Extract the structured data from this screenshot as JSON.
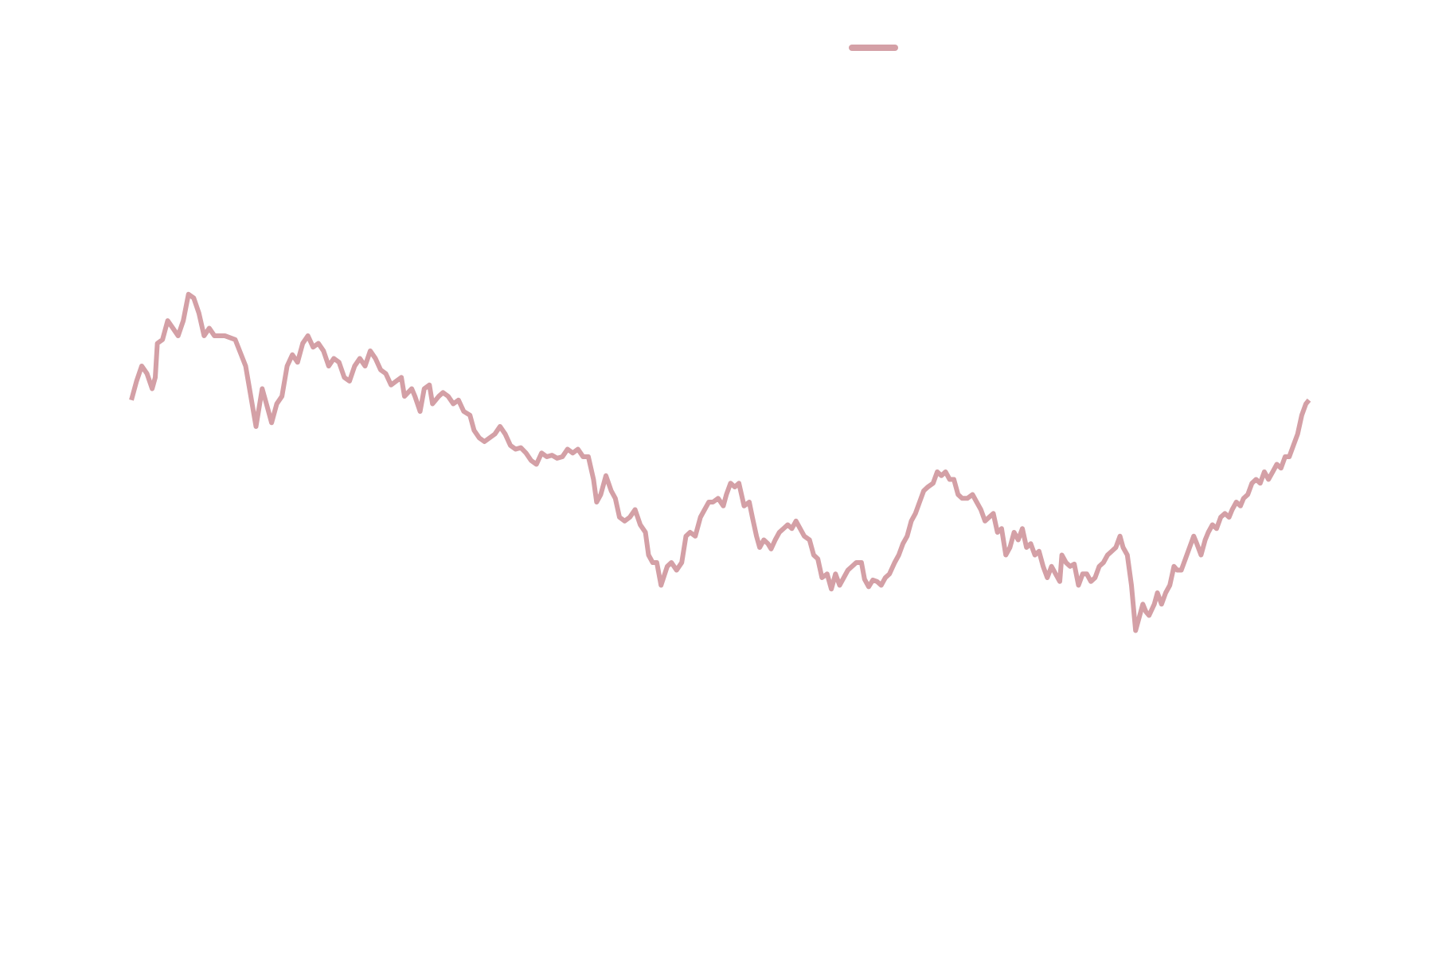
{
  "chart_data": {
    "type": "line",
    "title": "",
    "xlabel": "",
    "ylabel": "",
    "axes_visible": false,
    "grid": false,
    "legend": {
      "placement": "top-center",
      "entries": [
        {
          "label": "",
          "color": "#d4a0a6"
        }
      ]
    },
    "ylim": [
      0,
      100
    ],
    "series": [
      {
        "color": "#d4a0a6",
        "points": [
          [
            0,
            55.5
          ],
          [
            0.5,
            58
          ],
          [
            1,
            60
          ],
          [
            1.5,
            59
          ],
          [
            2,
            57
          ],
          [
            2.3,
            58.5
          ],
          [
            2.5,
            63
          ],
          [
            3,
            63.5
          ],
          [
            3.5,
            66
          ],
          [
            4,
            65
          ],
          [
            4.5,
            64
          ],
          [
            5,
            66
          ],
          [
            5.5,
            69.5
          ],
          [
            6,
            69
          ],
          [
            6.5,
            67
          ],
          [
            7,
            64
          ],
          [
            7.5,
            65
          ],
          [
            8,
            64
          ],
          [
            9,
            64
          ],
          [
            10,
            63.5
          ],
          [
            11,
            60
          ],
          [
            11.5,
            56
          ],
          [
            12,
            52
          ],
          [
            12.6,
            57
          ],
          [
            13,
            55
          ],
          [
            13.5,
            52.5
          ],
          [
            14,
            55
          ],
          [
            14.5,
            56
          ],
          [
            15,
            60
          ],
          [
            15.5,
            61.5
          ],
          [
            16,
            60.5
          ],
          [
            16.5,
            63
          ],
          [
            17,
            64
          ],
          [
            17.5,
            62.5
          ],
          [
            18,
            63
          ],
          [
            18.5,
            62
          ],
          [
            19,
            60
          ],
          [
            19.5,
            61
          ],
          [
            20,
            60.5
          ],
          [
            20.5,
            58.5
          ],
          [
            21,
            58
          ],
          [
            21.5,
            60
          ],
          [
            22,
            61
          ],
          [
            22.5,
            60
          ],
          [
            23,
            62
          ],
          [
            23.5,
            61
          ],
          [
            24,
            59.5
          ],
          [
            24.5,
            59
          ],
          [
            25,
            57.5
          ],
          [
            25.5,
            58
          ],
          [
            26,
            58.5
          ],
          [
            26.3,
            56
          ],
          [
            27,
            57
          ],
          [
            27.3,
            56
          ],
          [
            27.8,
            54
          ],
          [
            28.2,
            57
          ],
          [
            28.7,
            57.5
          ],
          [
            29,
            55
          ],
          [
            29.6,
            56
          ],
          [
            30,
            56.5
          ],
          [
            30.5,
            56
          ],
          [
            31,
            55
          ],
          [
            31.5,
            55.5
          ],
          [
            32,
            54
          ],
          [
            32.6,
            53.5
          ],
          [
            33,
            51.5
          ],
          [
            33.5,
            50.5
          ],
          [
            34,
            50
          ],
          [
            35,
            51
          ],
          [
            35.5,
            52
          ],
          [
            36,
            51
          ],
          [
            36.5,
            49.5
          ],
          [
            37,
            49
          ],
          [
            37.5,
            49.2
          ],
          [
            38,
            48.5
          ],
          [
            38.5,
            47.5
          ],
          [
            39,
            47
          ],
          [
            39.5,
            48.5
          ],
          [
            40,
            48
          ],
          [
            40.5,
            48.2
          ],
          [
            41,
            47.8
          ],
          [
            41.5,
            48
          ],
          [
            42,
            49
          ],
          [
            42.5,
            48.5
          ],
          [
            43,
            49
          ],
          [
            43.5,
            48
          ],
          [
            44,
            48
          ],
          [
            44.5,
            45
          ],
          [
            44.8,
            42
          ],
          [
            45.2,
            43
          ],
          [
            45.7,
            45.5
          ],
          [
            46.2,
            43.5
          ],
          [
            46.6,
            42.5
          ],
          [
            47,
            40
          ],
          [
            47.5,
            39.5
          ],
          [
            48,
            40
          ],
          [
            48.5,
            41
          ],
          [
            49,
            39
          ],
          [
            49.5,
            38
          ],
          [
            49.8,
            35
          ],
          [
            50.2,
            34
          ],
          [
            50.6,
            34
          ],
          [
            51,
            31
          ],
          [
            51.6,
            33.5
          ],
          [
            52,
            34
          ],
          [
            52.5,
            33
          ],
          [
            53,
            34
          ],
          [
            53.4,
            37.5
          ],
          [
            53.8,
            38
          ],
          [
            54.3,
            37.5
          ],
          [
            54.8,
            40
          ],
          [
            55.2,
            41
          ],
          [
            55.6,
            42
          ],
          [
            56,
            42
          ],
          [
            56.5,
            42.5
          ],
          [
            57,
            41.5
          ],
          [
            57.3,
            43
          ],
          [
            57.7,
            44.5
          ],
          [
            58.1,
            44
          ],
          [
            58.5,
            44.5
          ],
          [
            59,
            41.5
          ],
          [
            59.5,
            42
          ],
          [
            59.8,
            40
          ],
          [
            60.2,
            37.5
          ],
          [
            60.5,
            36
          ],
          [
            60.9,
            37
          ],
          [
            61.3,
            36.5
          ],
          [
            61.6,
            35.8
          ],
          [
            62,
            37
          ],
          [
            62.4,
            38
          ],
          [
            62.8,
            38.5
          ],
          [
            63.2,
            39
          ],
          [
            63.6,
            38.5
          ],
          [
            64,
            39.5
          ],
          [
            64.4,
            38.5
          ],
          [
            64.8,
            37.5
          ],
          [
            65.3,
            37
          ],
          [
            65.7,
            35
          ],
          [
            66.1,
            34.5
          ],
          [
            66.5,
            32
          ],
          [
            67,
            32.5
          ],
          [
            67.4,
            30.5
          ],
          [
            67.8,
            32.5
          ],
          [
            68.2,
            31
          ],
          [
            68.6,
            32
          ],
          [
            69,
            33
          ],
          [
            69.4,
            33.5
          ],
          [
            69.8,
            34
          ],
          [
            70.3,
            34
          ],
          [
            70.6,
            31.8
          ],
          [
            71,
            30.8
          ],
          [
            71.4,
            31.7
          ],
          [
            71.8,
            31.5
          ],
          [
            72.2,
            31
          ],
          [
            72.6,
            32
          ],
          [
            73,
            32.5
          ],
          [
            73.5,
            34
          ],
          [
            73.9,
            35
          ],
          [
            74.3,
            36.5
          ],
          [
            74.7,
            37.5
          ],
          [
            75.1,
            39.5
          ],
          [
            75.5,
            40.5
          ],
          [
            75.9,
            42
          ],
          [
            76.3,
            43.5
          ],
          [
            76.7,
            44
          ],
          [
            77.2,
            44.5
          ],
          [
            77.6,
            46
          ],
          [
            78,
            45.5
          ],
          [
            78.4,
            46
          ],
          [
            78.8,
            45
          ],
          [
            79.2,
            45
          ],
          [
            79.6,
            43
          ],
          [
            80,
            42.5
          ],
          [
            80.5,
            42.5
          ],
          [
            81,
            43
          ],
          [
            81.4,
            42
          ],
          [
            81.8,
            41
          ],
          [
            82.2,
            39.5
          ],
          [
            82.6,
            40
          ],
          [
            83,
            40.5
          ],
          [
            83.4,
            38
          ],
          [
            83.8,
            38.5
          ],
          [
            84.2,
            35
          ],
          [
            84.6,
            36
          ],
          [
            85,
            38
          ],
          [
            85.4,
            37
          ],
          [
            85.8,
            38.5
          ],
          [
            86.2,
            36
          ],
          [
            86.6,
            36.5
          ],
          [
            87,
            35
          ],
          [
            87.4,
            35.5
          ],
          [
            87.8,
            33.5
          ],
          [
            88.2,
            32
          ],
          [
            88.6,
            33.5
          ],
          [
            89,
            32.5
          ],
          [
            89.4,
            31.5
          ],
          [
            89.6,
            35
          ],
          [
            90,
            34
          ],
          [
            90.4,
            33.5
          ],
          [
            90.8,
            33.8
          ],
          [
            91.2,
            31
          ],
          [
            91.6,
            32.5
          ],
          [
            92,
            32.5
          ],
          [
            92.4,
            31.5
          ],
          [
            92.8,
            32
          ],
          [
            93.2,
            33.5
          ],
          [
            93.6,
            34
          ],
          [
            94,
            35
          ],
          [
            94.4,
            35.5
          ],
          [
            94.8,
            36
          ],
          [
            95.2,
            37.5
          ],
          [
            95.5,
            36
          ],
          [
            95.9,
            35
          ],
          [
            96.3,
            31
          ],
          [
            96.7,
            25
          ],
          [
            97.1,
            27
          ],
          [
            97.4,
            28.5
          ],
          [
            97.7,
            27.5
          ],
          [
            98,
            27
          ],
          [
            98.5,
            28.5
          ],
          [
            98.8,
            30
          ],
          [
            99.2,
            28.5
          ],
          [
            99.6,
            30
          ],
          [
            100,
            31
          ],
          [
            100.4,
            33.5
          ],
          [
            100.7,
            33
          ],
          [
            101.1,
            33
          ],
          [
            101.5,
            34.5
          ],
          [
            101.9,
            36
          ],
          [
            102.3,
            37.5
          ],
          [
            102.6,
            36.5
          ],
          [
            103,
            35
          ],
          [
            103.4,
            37
          ],
          [
            103.7,
            38
          ],
          [
            104.1,
            39
          ],
          [
            104.5,
            38.5
          ],
          [
            104.9,
            40
          ],
          [
            105.3,
            40.5
          ],
          [
            105.7,
            40
          ],
          [
            106,
            41
          ],
          [
            106.4,
            42
          ],
          [
            106.8,
            41.5
          ],
          [
            107.1,
            42.5
          ],
          [
            107.5,
            43
          ],
          [
            107.9,
            44.5
          ],
          [
            108.3,
            45
          ],
          [
            108.7,
            44.5
          ],
          [
            109.1,
            46
          ],
          [
            109.5,
            45
          ],
          [
            109.9,
            46
          ],
          [
            110.3,
            47
          ],
          [
            110.7,
            46.5
          ],
          [
            111.1,
            48
          ],
          [
            111.5,
            48
          ],
          [
            111.9,
            49.5
          ],
          [
            112.3,
            51
          ],
          [
            112.7,
            53.5
          ],
          [
            113.1,
            55
          ],
          [
            113.4,
            55.5
          ]
        ]
      }
    ],
    "xlim": [
      0,
      113.4
    ]
  }
}
